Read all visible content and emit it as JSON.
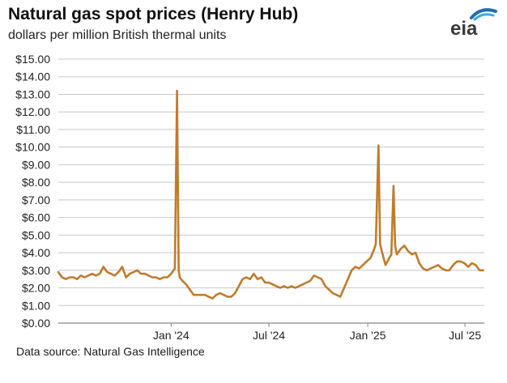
{
  "header": {
    "title": "Natural gas spot prices (Henry Hub)",
    "subtitle": "dollars per million British thermal units",
    "logo_text": "eia"
  },
  "footer": {
    "source": "Data source: Natural Gas Intelligence"
  },
  "colors": {
    "line": "#c07b2c",
    "grid": "#c8c8c8",
    "logo_text": "#3a3a3a",
    "logo_arc_dark": "#1e6fb4",
    "logo_arc_light": "#3fa9e0"
  },
  "chart_data": {
    "type": "line",
    "title": "Natural gas spot prices (Henry Hub)",
    "ylabel": "dollars per million British thermal units",
    "ylim": [
      0,
      15
    ],
    "yticks": [
      0,
      1,
      2,
      3,
      4,
      5,
      6,
      7,
      8,
      9,
      10,
      11,
      12,
      13,
      14,
      15
    ],
    "ytick_labels": [
      "$0.00",
      "$1.00",
      "$2.00",
      "$3.00",
      "$4.00",
      "$5.00",
      "$6.00",
      "$7.00",
      "$8.00",
      "$9.00",
      "$10.00",
      "$11.00",
      "$12.00",
      "$13.00",
      "$14.00",
      "$15.00"
    ],
    "xlim": [
      "2023-06-05",
      "2025-08-06"
    ],
    "xticks": [
      "2024-01-01",
      "2024-07-01",
      "2025-01-01",
      "2025-07-01"
    ],
    "xtick_labels": [
      "Jan '24",
      "Jul '24",
      "Jan '25",
      "Jul '25"
    ],
    "grid": true,
    "series": [
      {
        "x": [
          "2023-06-05",
          "2023-06-12",
          "2023-06-19",
          "2023-06-26",
          "2023-07-03",
          "2023-07-10",
          "2023-07-17",
          "2023-07-24",
          "2023-07-31",
          "2023-08-07",
          "2023-08-14",
          "2023-08-21",
          "2023-08-28",
          "2023-09-04",
          "2023-09-11",
          "2023-09-18",
          "2023-09-25",
          "2023-10-02",
          "2023-10-09",
          "2023-10-16",
          "2023-10-23",
          "2023-10-30",
          "2023-11-06",
          "2023-11-13",
          "2023-11-20",
          "2023-11-27",
          "2023-12-04",
          "2023-12-11",
          "2023-12-18",
          "2023-12-25",
          "2024-01-01",
          "2024-01-08",
          "2024-01-12",
          "2024-01-15",
          "2024-01-17",
          "2024-01-22",
          "2024-01-29",
          "2024-02-05",
          "2024-02-12",
          "2024-02-19",
          "2024-02-26",
          "2024-03-04",
          "2024-03-11",
          "2024-03-18",
          "2024-03-25",
          "2024-04-01",
          "2024-04-08",
          "2024-04-15",
          "2024-04-22",
          "2024-04-29",
          "2024-05-06",
          "2024-05-13",
          "2024-05-20",
          "2024-05-27",
          "2024-06-03",
          "2024-06-10",
          "2024-06-17",
          "2024-06-24",
          "2024-07-01",
          "2024-07-08",
          "2024-07-15",
          "2024-07-22",
          "2024-07-29",
          "2024-08-05",
          "2024-08-12",
          "2024-08-19",
          "2024-08-26",
          "2024-09-02",
          "2024-09-09",
          "2024-09-16",
          "2024-09-23",
          "2024-09-30",
          "2024-10-07",
          "2024-10-14",
          "2024-10-21",
          "2024-10-28",
          "2024-11-04",
          "2024-11-11",
          "2024-11-18",
          "2024-11-25",
          "2024-12-02",
          "2024-12-09",
          "2024-12-16",
          "2024-12-23",
          "2024-12-30",
          "2025-01-06",
          "2025-01-13",
          "2025-01-16",
          "2025-01-21",
          "2025-01-24",
          "2025-01-27",
          "2025-02-03",
          "2025-02-10",
          "2025-02-14",
          "2025-02-18",
          "2025-02-21",
          "2025-02-24",
          "2025-03-03",
          "2025-03-10",
          "2025-03-17",
          "2025-03-24",
          "2025-03-31",
          "2025-04-07",
          "2025-04-14",
          "2025-04-21",
          "2025-04-28",
          "2025-05-05",
          "2025-05-12",
          "2025-05-19",
          "2025-05-26",
          "2025-06-02",
          "2025-06-09",
          "2025-06-16",
          "2025-06-23",
          "2025-06-30",
          "2025-07-07",
          "2025-07-14",
          "2025-07-21",
          "2025-07-28",
          "2025-08-04"
        ],
        "y": [
          2.9,
          2.6,
          2.5,
          2.6,
          2.6,
          2.5,
          2.7,
          2.6,
          2.7,
          2.8,
          2.7,
          2.8,
          3.2,
          2.9,
          2.8,
          2.7,
          2.9,
          3.2,
          2.6,
          2.8,
          2.9,
          3.0,
          2.8,
          2.8,
          2.7,
          2.6,
          2.6,
          2.5,
          2.6,
          2.6,
          2.8,
          3.1,
          13.2,
          3.0,
          2.6,
          2.4,
          2.2,
          1.9,
          1.6,
          1.6,
          1.6,
          1.6,
          1.5,
          1.4,
          1.6,
          1.7,
          1.6,
          1.5,
          1.5,
          1.7,
          2.1,
          2.5,
          2.6,
          2.5,
          2.8,
          2.5,
          2.6,
          2.3,
          2.3,
          2.2,
          2.1,
          2.0,
          2.1,
          2.0,
          2.1,
          2.0,
          2.1,
          2.2,
          2.3,
          2.4,
          2.7,
          2.6,
          2.5,
          2.1,
          1.9,
          1.7,
          1.6,
          1.5,
          2.0,
          2.5,
          3.0,
          3.2,
          3.1,
          3.3,
          3.5,
          3.7,
          4.2,
          4.5,
          10.1,
          4.5,
          4.1,
          3.3,
          3.7,
          3.9,
          7.8,
          4.4,
          3.9,
          4.2,
          4.4,
          4.1,
          3.9,
          4.0,
          3.4,
          3.1,
          3.0,
          3.1,
          3.2,
          3.3,
          3.1,
          3.0,
          3.0,
          3.3,
          3.5,
          3.5,
          3.4,
          3.2,
          3.4,
          3.3,
          3.0,
          3.0
        ]
      }
    ]
  }
}
